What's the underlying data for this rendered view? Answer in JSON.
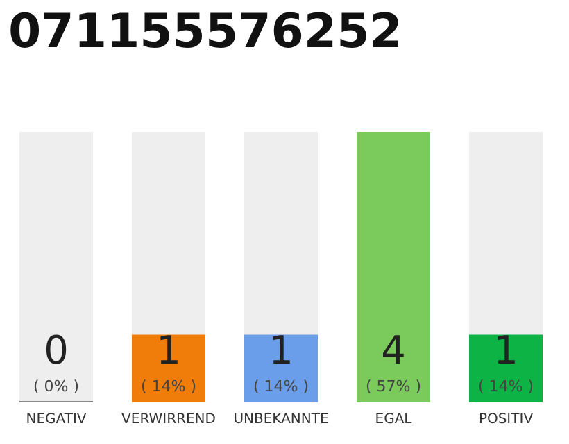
{
  "chart_data": {
    "type": "bar",
    "title": "071155576252",
    "categories": [
      "NEGATIV",
      "VERWIRREND",
      "UNBEKANNTE",
      "EGAL",
      "POSITIV"
    ],
    "values": [
      0,
      1,
      1,
      4,
      1
    ],
    "colors": [
      "#888888",
      "#f07d0a",
      "#6a9eea",
      "#7acb5c",
      "#0db344"
    ],
    "data_labels": true,
    "annotations": [
      "( 0% )",
      "( 14% )",
      "( 14% )",
      "( 57% )",
      "( 14% )"
    ]
  }
}
